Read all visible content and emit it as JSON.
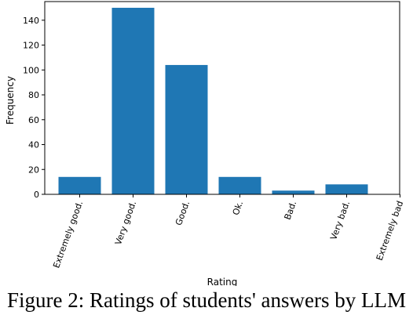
{
  "chart_data": {
    "type": "bar",
    "title": "",
    "xlabel": "Rating",
    "ylabel": "Frequency",
    "categories": [
      "Extremely good.",
      "Very good.",
      "Good.",
      "Ok.",
      "Bad.",
      "Very bad.",
      "Extremely bad"
    ],
    "values": [
      14,
      150,
      104,
      14,
      3,
      8,
      0
    ],
    "ylim": [
      0,
      155
    ],
    "yticks": [
      0,
      20,
      40,
      60,
      80,
      100,
      120,
      140
    ],
    "bar_color": "#1f77b4",
    "grid": false
  },
  "caption": "Figure 2: Ratings of students' answers by LLM"
}
